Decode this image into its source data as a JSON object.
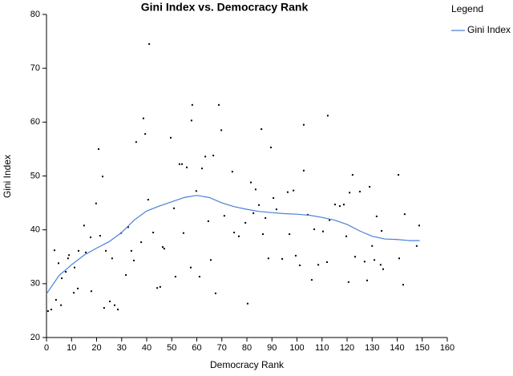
{
  "chart_data": {
    "type": "scatter",
    "title": "Gini Index vs. Democracy Rank",
    "x_label": "Democracy Rank",
    "y_label": "Gini Index",
    "legend_title": "Legend",
    "legend_position": "right",
    "xlim": [
      0,
      160
    ],
    "xticks": [
      0,
      10,
      20,
      30,
      40,
      50,
      60,
      70,
      80,
      90,
      100,
      110,
      120,
      130,
      140,
      150,
      160
    ],
    "ylim": [
      20,
      80
    ],
    "yticks": [
      20,
      30,
      40,
      50,
      60,
      70,
      80
    ],
    "grid": false,
    "series": [
      {
        "kind": "points",
        "color": "#000000",
        "x": [
          0.6,
          1.9,
          3.2,
          3.8,
          4.8,
          5.8,
          6.1,
          7.7,
          8.6,
          9.0,
          10.9,
          11.2,
          12.5,
          12.8,
          15.0,
          15.7,
          17.6,
          17.9,
          19.8,
          20.8,
          21.4,
          22.4,
          23.0,
          23.7,
          25.3,
          26.2,
          27.2,
          28.5,
          29.8,
          31.7,
          32.6,
          33.9,
          34.9,
          35.8,
          37.8,
          38.7,
          39.4,
          40.6,
          41.0,
          42.6,
          44.2,
          45.4,
          46.4,
          47.0,
          49.6,
          50.9,
          51.5,
          53.1,
          54.1,
          54.7,
          56.0,
          57.6,
          57.9,
          58.2,
          59.8,
          61.1,
          62.1,
          63.4,
          64.6,
          65.6,
          66.6,
          67.5,
          68.8,
          69.8,
          71.0,
          74.2,
          74.9,
          76.8,
          79.4,
          80.3,
          81.6,
          82.6,
          83.5,
          84.8,
          85.8,
          86.4,
          87.4,
          88.6,
          89.6,
          90.6,
          91.8,
          94.1,
          96.3,
          97.0,
          98.6,
          99.5,
          101.1,
          102.7,
          102.7,
          104.3,
          105.9,
          106.9,
          108.5,
          110.4,
          112.0,
          112.3,
          113.0,
          115.2,
          117.1,
          118.7,
          119.7,
          120.6,
          121.0,
          122.2,
          123.2,
          125.1,
          127.0,
          128.0,
          129.0,
          130.0,
          130.9,
          131.8,
          133.4,
          134.4,
          133.8,
          140.5,
          140.8,
          142.4,
          143.0,
          147.8,
          148.8
        ],
        "values": [
          24.9,
          25.2,
          36.2,
          27.0,
          33.8,
          26.0,
          31.0,
          32.2,
          34.7,
          35.3,
          28.3,
          33.0,
          29.1,
          36.1,
          40.8,
          35.8,
          38.6,
          28.6,
          44.9,
          55.0,
          38.9,
          49.9,
          25.5,
          36.1,
          26.7,
          34.7,
          26.0,
          25.2,
          39.4,
          31.6,
          40.5,
          36.1,
          34.3,
          56.3,
          37.7,
          60.7,
          57.8,
          45.6,
          74.5,
          39.5,
          29.2,
          29.4,
          36.8,
          36.5,
          57.1,
          44.0,
          31.3,
          52.2,
          52.2,
          39.4,
          51.6,
          33.0,
          60.3,
          63.2,
          47.2,
          31.3,
          51.4,
          53.6,
          41.6,
          34.4,
          53.8,
          28.2,
          63.2,
          58.5,
          42.6,
          50.8,
          39.5,
          38.8,
          41.3,
          26.3,
          48.8,
          43.1,
          47.5,
          44.6,
          58.7,
          39.2,
          42.2,
          34.7,
          55.3,
          45.9,
          43.8,
          34.6,
          47.0,
          39.2,
          47.3,
          35.2,
          33.4,
          59.5,
          51.0,
          42.8,
          30.7,
          40.1,
          33.5,
          39.7,
          34.0,
          61.2,
          41.8,
          44.7,
          44.4,
          44.7,
          38.8,
          30.3,
          46.9,
          50.2,
          35.0,
          47.1,
          34.1,
          30.6,
          48.0,
          37.0,
          34.4,
          42.5,
          33.5,
          32.7,
          39.8,
          50.2,
          34.7,
          29.8,
          42.9,
          37.0,
          40.8
        ]
      },
      {
        "kind": "line",
        "name": "Gini Index",
        "color": "#4a7fd8",
        "x": [
          0,
          5,
          10,
          15,
          20,
          25,
          30,
          35,
          40,
          45,
          50,
          55,
          60,
          65,
          70,
          75,
          80,
          85,
          90,
          95,
          100,
          105,
          110,
          115,
          120,
          125,
          130,
          135,
          140,
          145,
          149
        ],
        "values": [
          28.1,
          31.5,
          33.5,
          35.3,
          36.6,
          37.8,
          39.5,
          41.8,
          43.5,
          44.4,
          45.2,
          46.0,
          46.4,
          46.0,
          45.0,
          44.3,
          43.8,
          43.4,
          43.2,
          43.0,
          42.9,
          42.7,
          42.3,
          41.8,
          41.0,
          39.8,
          38.8,
          38.3,
          38.2,
          38.0,
          38.0
        ]
      }
    ]
  }
}
